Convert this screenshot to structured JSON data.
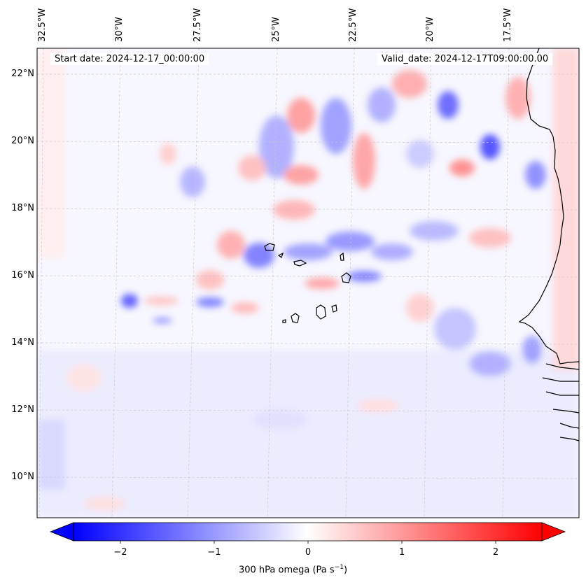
{
  "map": {
    "start_date": "Start date: 2024-12-17_00:00:00",
    "valid_date": "Valid_date: 2024-12-17T09:00:00.00",
    "lon_labels": [
      "32.5°W",
      "30°W",
      "27.5°W",
      "25°W",
      "22.5°W",
      "20°W",
      "17.5°W"
    ],
    "lat_labels": [
      "22°N",
      "20°N",
      "18°N",
      "16°N",
      "14°N",
      "12°N",
      "10°N"
    ],
    "gridlines": true,
    "coastline_color": "#000000"
  },
  "colorbar": {
    "ticks": [
      "−2",
      "−1",
      "0",
      "1",
      "2"
    ],
    "label": "300 hPa omega (Pa s",
    "label_sup": "−1",
    "label_end": ")",
    "range": [
      -2.75,
      2.75
    ],
    "cmap": [
      "#0000ff",
      "#ffffff",
      "#ff0000"
    ],
    "extend": "both"
  }
}
